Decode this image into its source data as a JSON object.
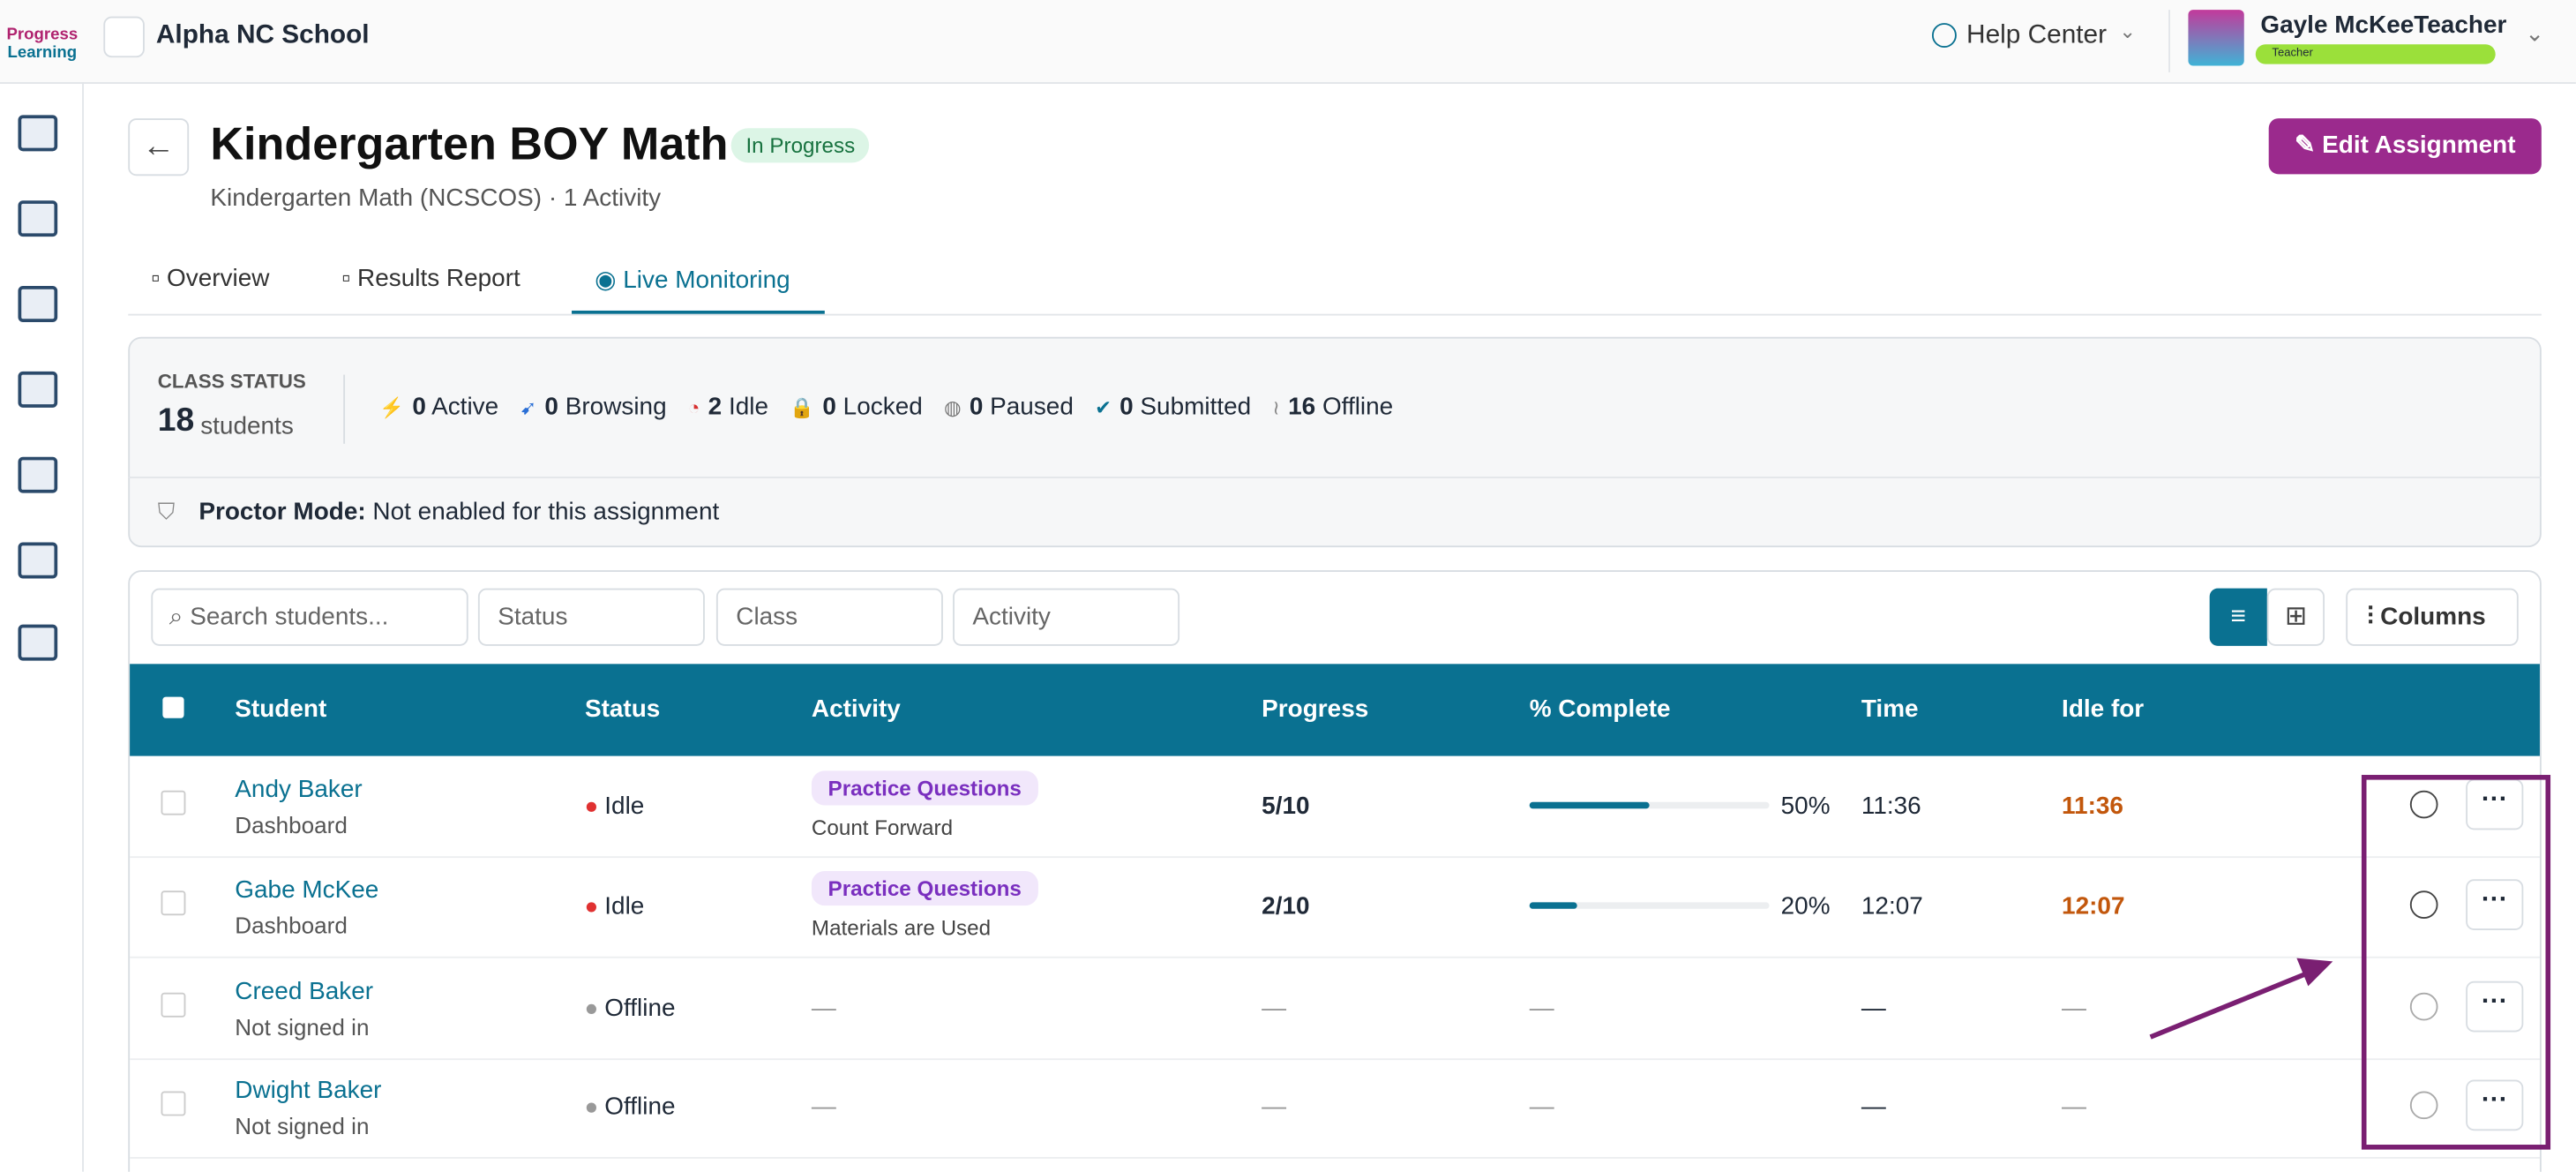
{
  "topbar": {
    "logo": [
      "Progress",
      "Learning"
    ],
    "school": "Alpha NC School",
    "help": "Help Center",
    "user": "Gayle McKeeTeacher",
    "role": "Teacher"
  },
  "header": {
    "title": "Kindergarten BOY Math",
    "badge": "In Progress",
    "subject": "Kindergarten Math (NCSCOS)",
    "separator": "·",
    "activities": "1 Activity",
    "edit": "Edit Assignment"
  },
  "tabs": [
    "Overview",
    "Results Report",
    "Live Monitoring"
  ],
  "class_status": {
    "label": "CLASS STATUS",
    "count": 18,
    "unit": "students",
    "items": [
      {
        "count": 0,
        "label": "Active"
      },
      {
        "count": 0,
        "label": "Browsing"
      },
      {
        "count": 2,
        "label": "Idle"
      },
      {
        "count": 0,
        "label": "Locked"
      },
      {
        "count": 0,
        "label": "Paused"
      },
      {
        "count": 0,
        "label": "Submitted"
      },
      {
        "count": 16,
        "label": "Offline"
      }
    ],
    "proctor_label": "Proctor Mode:",
    "proctor_value": "Not enabled for this assignment"
  },
  "filters": {
    "search": "Search students...",
    "selects": [
      "Status",
      "Class",
      "Activity"
    ],
    "columns": "Columns"
  },
  "table": {
    "headers": [
      "Student",
      "Status",
      "Activity",
      "Progress",
      "% Complete",
      "Time",
      "Idle for"
    ],
    "rows": [
      {
        "name": "Andy Baker",
        "sub": "Dashboard",
        "status": "Idle",
        "tag": "Practice Questions",
        "activity": "Count Forward",
        "progress": "5/10",
        "percent": 50,
        "percent_label": "50%",
        "time": "11:36",
        "idle": "11:36"
      },
      {
        "name": "Gabe McKee",
        "sub": "Dashboard",
        "status": "Idle",
        "tag": "Practice Questions",
        "activity": "Materials are Used",
        "progress": "2/10",
        "percent": 20,
        "percent_label": "20%",
        "time": "12:07",
        "idle": "12:07"
      },
      {
        "name": "Creed Baker",
        "sub": "Not signed in",
        "status": "Offline",
        "activity": "—",
        "progress": "—",
        "percent_label": "—",
        "time": "—",
        "idle": "—"
      },
      {
        "name": "Dwight Baker",
        "sub": "Not signed in",
        "status": "Offline",
        "activity": "—",
        "progress": "—",
        "percent_label": "—",
        "time": "—",
        "idle": "—"
      }
    ]
  }
}
